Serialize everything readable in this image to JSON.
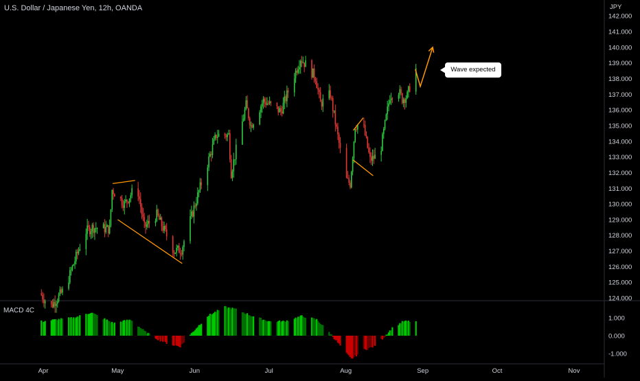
{
  "chart_data": [
    {
      "type": "candlestick",
      "title": "U.S. Dollar / Japanese Yen, 12h, OANDA",
      "currency": "JPY",
      "ylim": [
        123.8,
        142.8
      ],
      "y_ticks": [
        "124.000",
        "125.000",
        "126.000",
        "127.000",
        "128.000",
        "129.000",
        "130.000",
        "131.000",
        "132.000",
        "133.000",
        "134.000",
        "135.000",
        "136.000",
        "137.000",
        "138.000",
        "139.000",
        "140.000",
        "141.000",
        "142.000"
      ],
      "x_ticks": [
        "Apr",
        "May",
        "Jun",
        "Jul",
        "Aug",
        "Sep",
        "Oct",
        "Nov"
      ],
      "path_anchors": [
        {
          "date": "2022-03-31",
          "price": 124.3
        },
        {
          "date": "2022-04-04",
          "price": 123.4
        },
        {
          "date": "2022-04-10",
          "price": 124.6
        },
        {
          "date": "2022-04-18",
          "price": 128.2
        },
        {
          "date": "2022-04-21",
          "price": 128.5
        },
        {
          "date": "2022-04-28",
          "price": 128.4
        },
        {
          "date": "2022-04-29",
          "price": 130.9
        },
        {
          "date": "2022-05-04",
          "price": 130.0
        },
        {
          "date": "2022-05-09",
          "price": 131.2
        },
        {
          "date": "2022-05-12",
          "price": 128.5
        },
        {
          "date": "2022-05-17",
          "price": 129.3
        },
        {
          "date": "2022-05-24",
          "price": 127.0
        },
        {
          "date": "2022-05-27",
          "price": 127.1
        },
        {
          "date": "2022-06-03",
          "price": 130.8
        },
        {
          "date": "2022-06-10",
          "price": 134.4
        },
        {
          "date": "2022-06-15",
          "price": 134.4
        },
        {
          "date": "2022-06-16",
          "price": 132.0
        },
        {
          "date": "2022-06-22",
          "price": 136.3
        },
        {
          "date": "2022-06-24",
          "price": 135.0
        },
        {
          "date": "2022-06-29",
          "price": 136.6
        },
        {
          "date": "2022-07-06",
          "price": 135.9
        },
        {
          "date": "2022-07-14",
          "price": 139.3
        },
        {
          "date": "2022-07-20",
          "price": 138.1
        },
        {
          "date": "2022-07-22",
          "price": 136.4
        },
        {
          "date": "2022-07-26",
          "price": 137.0
        },
        {
          "date": "2022-08-01",
          "price": 131.6
        },
        {
          "date": "2022-08-03",
          "price": 131.3
        },
        {
          "date": "2022-08-05",
          "price": 135.0
        },
        {
          "date": "2022-08-08",
          "price": 135.2
        },
        {
          "date": "2022-08-11",
          "price": 132.8
        },
        {
          "date": "2022-08-15",
          "price": 133.2
        },
        {
          "date": "2022-08-19",
          "price": 136.9
        },
        {
          "date": "2022-08-22",
          "price": 137.4
        },
        {
          "date": "2022-08-24",
          "price": 136.7
        },
        {
          "date": "2022-08-26",
          "price": 136.9
        },
        {
          "date": "2022-08-29",
          "price": 138.6
        }
      ],
      "drawings": [
        {
          "kind": "line",
          "color": "#ff9800",
          "points": [
            {
              "date": "2022-04-29",
              "price": 131.3
            },
            {
              "date": "2022-05-08",
              "price": 131.5
            }
          ]
        },
        {
          "kind": "line",
          "color": "#ff9800",
          "points": [
            {
              "date": "2022-05-01",
              "price": 129.0
            },
            {
              "date": "2022-05-27",
              "price": 126.2
            }
          ]
        },
        {
          "kind": "line",
          "color": "#ff9800",
          "points": [
            {
              "date": "2022-08-04",
              "price": 134.7
            },
            {
              "date": "2022-08-08",
              "price": 135.5
            }
          ]
        },
        {
          "kind": "line",
          "color": "#ff9800",
          "points": [
            {
              "date": "2022-08-04",
              "price": 132.8
            },
            {
              "date": "2022-08-12",
              "price": 131.8
            }
          ]
        },
        {
          "kind": "arrow",
          "color": "#ff9800",
          "points": [
            {
              "date": "2022-08-29",
              "price": 138.6
            },
            {
              "date": "2022-08-31",
              "price": 137.5
            },
            {
              "date": "2022-09-05",
              "price": 140.0
            }
          ]
        }
      ],
      "annotations": [
        {
          "text": "Wave expected"
        }
      ]
    },
    {
      "type": "histogram",
      "title": "MACD 4C",
      "ylim": [
        -1.35,
        1.65
      ],
      "y_ticks": [
        "1.000",
        "0.000",
        "-1.000"
      ],
      "anchors": [
        {
          "date": "2022-03-31",
          "value": 0.8
        },
        {
          "date": "2022-04-06",
          "value": 0.9
        },
        {
          "date": "2022-04-13",
          "value": 1.0
        },
        {
          "date": "2022-04-20",
          "value": 1.3
        },
        {
          "date": "2022-04-29",
          "value": 0.7
        },
        {
          "date": "2022-05-06",
          "value": 0.9
        },
        {
          "date": "2022-05-12",
          "value": 0.2
        },
        {
          "date": "2022-05-17",
          "value": -0.2
        },
        {
          "date": "2022-05-22",
          "value": -0.5
        },
        {
          "date": "2022-05-26",
          "value": -0.6
        },
        {
          "date": "2022-05-30",
          "value": 0.05
        },
        {
          "date": "2022-06-06",
          "value": 1.1
        },
        {
          "date": "2022-06-13",
          "value": 1.6
        },
        {
          "date": "2022-06-17",
          "value": 1.5
        },
        {
          "date": "2022-06-24",
          "value": 1.1
        },
        {
          "date": "2022-07-01",
          "value": 0.8
        },
        {
          "date": "2022-07-07",
          "value": 0.8
        },
        {
          "date": "2022-07-14",
          "value": 1.1
        },
        {
          "date": "2022-07-20",
          "value": 0.9
        },
        {
          "date": "2022-07-25",
          "value": 0.2
        },
        {
          "date": "2022-07-28",
          "value": -0.3
        },
        {
          "date": "2022-08-01",
          "value": -1.0
        },
        {
          "date": "2022-08-03",
          "value": -1.3
        },
        {
          "date": "2022-08-08",
          "value": -0.8
        },
        {
          "date": "2022-08-12",
          "value": -0.6
        },
        {
          "date": "2022-08-16",
          "value": -0.1
        },
        {
          "date": "2022-08-20",
          "value": 0.5
        },
        {
          "date": "2022-08-24",
          "value": 0.8
        },
        {
          "date": "2022-08-29",
          "value": 0.8
        }
      ]
    }
  ]
}
